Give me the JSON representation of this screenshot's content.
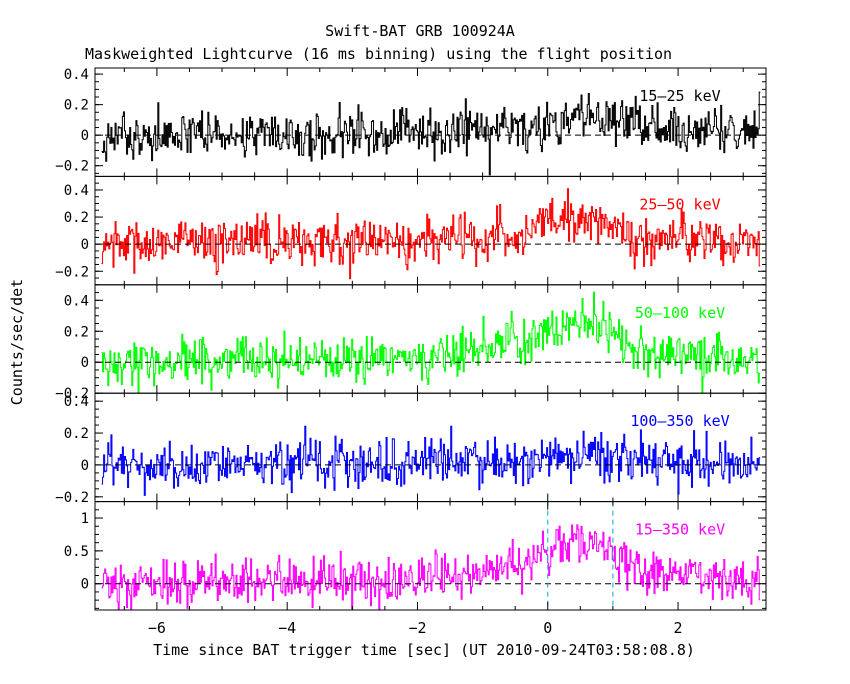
{
  "chart_data": {
    "type": "line",
    "title": "Swift-BAT GRB 100924A",
    "subtitle": "Maskweighted Lightcurve (16 ms binning) using the flight position",
    "xlabel": "Time since BAT trigger time [sec] (UT 2010-09-24T03:58:08.8)",
    "ylabel": "Counts/sec/det",
    "xlim": [
      -6.95,
      3.35
    ],
    "x_ticks": [
      -6,
      -4,
      -2,
      0,
      2
    ],
    "x_tick_labels": [
      "−6",
      "−4",
      "−2",
      "0",
      "2"
    ],
    "bin_width_s": 0.016,
    "markers": [
      0,
      1.0
    ],
    "panels": [
      {
        "name": "15–25 keV",
        "color": "#000000",
        "ylim": [
          -0.27,
          0.44
        ],
        "y_ticks": [
          -0.2,
          0,
          0.2,
          0.4
        ],
        "y_tick_labels": [
          "−0.2",
          "0",
          "0.2",
          "0.4"
        ],
        "noise_sigma": 0.075,
        "profile": [
          [
            -7,
            0.0
          ],
          [
            -3.5,
            0.0
          ],
          [
            -1.5,
            0.03
          ],
          [
            0,
            0.06
          ],
          [
            0.6,
            0.12
          ],
          [
            1.2,
            0.08
          ],
          [
            2,
            0.03
          ],
          [
            3.4,
            0.02
          ]
        ]
      },
      {
        "name": "25–50 keV",
        "color": "#ff0000",
        "ylim": [
          -0.3,
          0.5
        ],
        "y_ticks": [
          -0.2,
          0,
          0.2,
          0.4
        ],
        "y_tick_labels": [
          "−0.2",
          "0",
          "0.2",
          "0.4"
        ],
        "noise_sigma": 0.085,
        "profile": [
          [
            -7,
            0.0
          ],
          [
            -2.5,
            0.01
          ],
          [
            -0.5,
            0.06
          ],
          [
            0,
            0.14
          ],
          [
            0.6,
            0.2
          ],
          [
            1.0,
            0.1
          ],
          [
            1.5,
            0.04
          ],
          [
            3.4,
            0.02
          ]
        ]
      },
      {
        "name": "50–100 keV",
        "color": "#00ff00",
        "ylim": [
          -0.2,
          0.5
        ],
        "y_ticks": [
          -0.2,
          0,
          0.2,
          0.4
        ],
        "y_tick_labels": [
          "−0.2",
          "0",
          "0.2",
          "0.4"
        ],
        "noise_sigma": 0.075,
        "profile": [
          [
            -7,
            0.0
          ],
          [
            -3,
            0.01
          ],
          [
            -1.5,
            0.05
          ],
          [
            -0.3,
            0.15
          ],
          [
            0.2,
            0.22
          ],
          [
            0.8,
            0.25
          ],
          [
            1.2,
            0.1
          ],
          [
            1.8,
            0.04
          ],
          [
            3.4,
            0.0
          ]
        ]
      },
      {
        "name": "100–350 keV",
        "color": "#0000ff",
        "ylim": [
          -0.23,
          0.45
        ],
        "y_ticks": [
          -0.2,
          0,
          0.2,
          0.4
        ],
        "y_tick_labels": [
          "−0.2",
          "0",
          "0.2",
          "0.4"
        ],
        "noise_sigma": 0.075,
        "profile": [
          [
            -7,
            0.0
          ],
          [
            0,
            0.02
          ],
          [
            0.6,
            0.09
          ],
          [
            1.0,
            0.04
          ],
          [
            3.4,
            0.0
          ]
        ]
      },
      {
        "name": "15–350 keV",
        "color": "#ff00ff",
        "ylim": [
          -0.4,
          1.25
        ],
        "y_ticks": [
          0,
          0.5,
          1
        ],
        "y_tick_labels": [
          "0",
          "0.5",
          "1"
        ],
        "noise_sigma": 0.17,
        "profile": [
          [
            -7,
            0.0
          ],
          [
            -3,
            0.04
          ],
          [
            -1.5,
            0.12
          ],
          [
            -0.3,
            0.3
          ],
          [
            0.2,
            0.55
          ],
          [
            0.7,
            0.6
          ],
          [
            1.1,
            0.35
          ],
          [
            1.6,
            0.15
          ],
          [
            3.4,
            0.05
          ]
        ]
      }
    ]
  }
}
